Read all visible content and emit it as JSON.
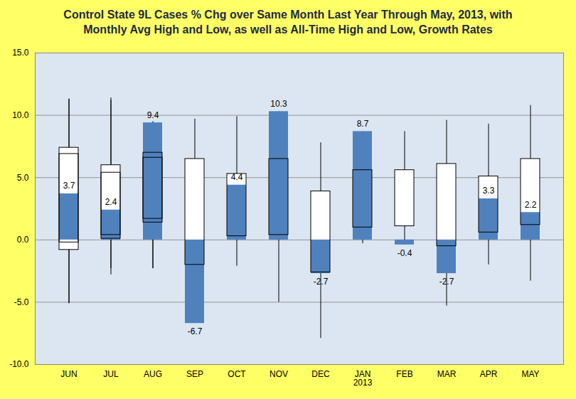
{
  "chart_data": {
    "type": "box",
    "title": "Control State 9L Cases % Chg over Same Month Last Year Through May, 2013, with\nMonthly Avg High and Low, as well as All-Time High and Low,  Growth Rates",
    "categories": [
      "JUN",
      "JUL",
      "AUG",
      "SEP",
      "OCT",
      "NOV",
      "DEC",
      "JAN\n2013",
      "FEB",
      "MAR",
      "APR",
      "MAY",
      "JUN",
      "JUL",
      "AUG"
    ],
    "values": [
      3.7,
      2.4,
      9.4,
      -6.7,
      4.4,
      10.3,
      -2.7,
      8.7,
      -0.4,
      -2.7,
      3.3,
      2.2,
      null,
      null,
      null
    ],
    "avg_high": [
      6.9,
      5.4,
      6.6,
      6.5,
      5.3,
      6.5,
      3.9,
      5.6,
      5.6,
      6.1,
      5.1,
      6.5,
      7.4,
      6.0,
      7.0
    ],
    "avg_low": [
      -0.8,
      0.1,
      1.4,
      -2.0,
      0.3,
      0.4,
      -2.6,
      1.0,
      1.1,
      -0.5,
      0.6,
      1.2,
      -0.2,
      0.4,
      1.7
    ],
    "all_time_high": [
      11.3,
      11.2,
      9.4,
      9.7,
      9.9,
      10.3,
      7.8,
      8.7,
      8.7,
      9.6,
      9.3,
      10.8,
      11.3,
      11.4,
      9.5
    ],
    "all_time_low": [
      -5.1,
      -2.3,
      -2.3,
      -6.7,
      -2.1,
      -5.0,
      -7.9,
      -0.3,
      -0.4,
      -5.3,
      -2.0,
      -3.3,
      -5.1,
      -2.8,
      -2.3
    ],
    "color": "#4f81bd",
    "data_labels": true,
    "ylim": [
      -10,
      15
    ],
    "yticks": [
      {
        "value": -10,
        "label": "-10.0"
      },
      {
        "value": -5,
        "label": "-5.0"
      },
      {
        "value": 0,
        "label": "0.0"
      },
      {
        "value": 5,
        "label": "5.0"
      },
      {
        "value": 10,
        "label": "10.0"
      },
      {
        "value": 15,
        "label": "15.0"
      }
    ],
    "grid": true
  }
}
